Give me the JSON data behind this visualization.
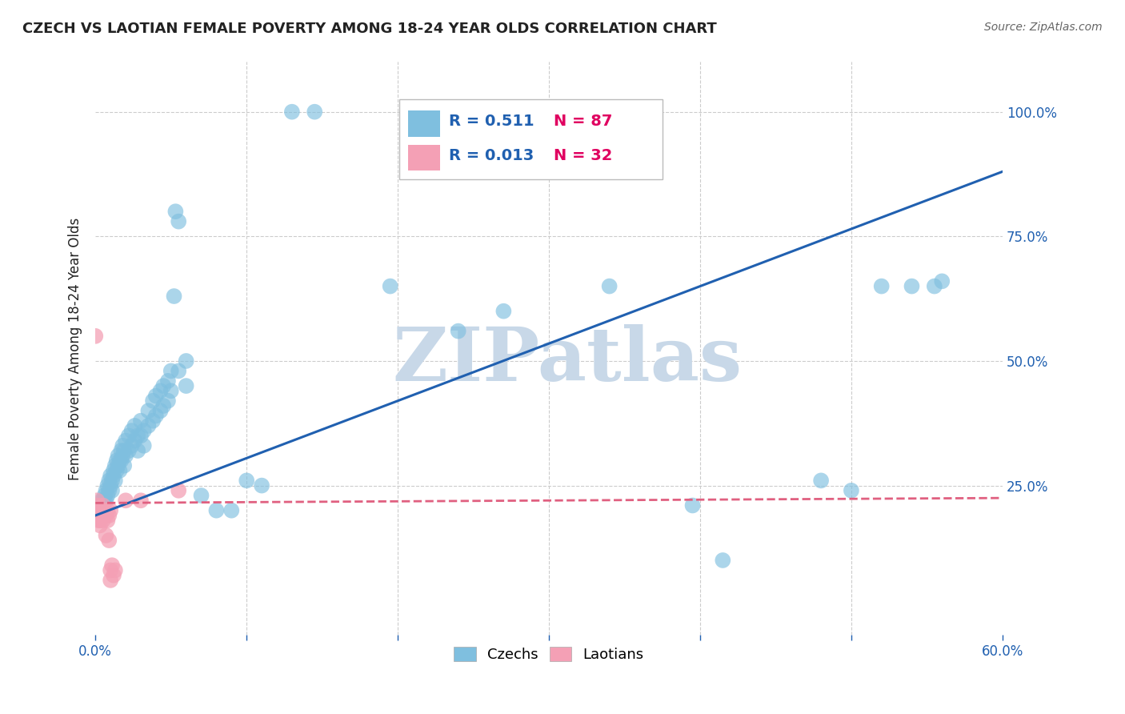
{
  "title": "CZECH VS LAOTIAN FEMALE POVERTY AMONG 18-24 YEAR OLDS CORRELATION CHART",
  "source": "Source: ZipAtlas.com",
  "ylabel_label": "Female Poverty Among 18-24 Year Olds",
  "xlim": [
    0.0,
    0.6
  ],
  "ylim": [
    -0.05,
    1.1
  ],
  "czech_R": 0.511,
  "czech_N": 87,
  "laotian_R": 0.013,
  "laotian_N": 32,
  "czech_color": "#7fbfdf",
  "laotian_color": "#f4a0b5",
  "czech_line_color": "#2060b0",
  "laotian_line_color": "#e06080",
  "watermark": "ZIPatlas",
  "watermark_color": "#c8d8e8",
  "background_color": "#ffffff",
  "grid_color": "#cccccc",
  "title_color": "#222222",
  "axis_label_color": "#222222",
  "tick_color": "#2060b0",
  "legend_R_color": "#2060b0",
  "legend_N_color": "#e00060",
  "czech_points": [
    [
      0.003,
      0.21
    ],
    [
      0.004,
      0.22
    ],
    [
      0.004,
      0.2
    ],
    [
      0.005,
      0.22
    ],
    [
      0.005,
      0.21
    ],
    [
      0.005,
      0.2
    ],
    [
      0.006,
      0.23
    ],
    [
      0.006,
      0.22
    ],
    [
      0.007,
      0.24
    ],
    [
      0.007,
      0.22
    ],
    [
      0.008,
      0.25
    ],
    [
      0.008,
      0.23
    ],
    [
      0.009,
      0.26
    ],
    [
      0.009,
      0.24
    ],
    [
      0.01,
      0.27
    ],
    [
      0.01,
      0.25
    ],
    [
      0.011,
      0.26
    ],
    [
      0.011,
      0.24
    ],
    [
      0.012,
      0.28
    ],
    [
      0.012,
      0.27
    ],
    [
      0.013,
      0.29
    ],
    [
      0.013,
      0.26
    ],
    [
      0.014,
      0.3
    ],
    [
      0.014,
      0.28
    ],
    [
      0.015,
      0.31
    ],
    [
      0.015,
      0.29
    ],
    [
      0.016,
      0.3
    ],
    [
      0.016,
      0.28
    ],
    [
      0.017,
      0.32
    ],
    [
      0.017,
      0.3
    ],
    [
      0.018,
      0.33
    ],
    [
      0.018,
      0.31
    ],
    [
      0.019,
      0.32
    ],
    [
      0.019,
      0.29
    ],
    [
      0.02,
      0.34
    ],
    [
      0.02,
      0.31
    ],
    [
      0.022,
      0.35
    ],
    [
      0.022,
      0.32
    ],
    [
      0.024,
      0.36
    ],
    [
      0.024,
      0.33
    ],
    [
      0.026,
      0.37
    ],
    [
      0.026,
      0.34
    ],
    [
      0.028,
      0.35
    ],
    [
      0.028,
      0.32
    ],
    [
      0.03,
      0.38
    ],
    [
      0.03,
      0.35
    ],
    [
      0.032,
      0.36
    ],
    [
      0.032,
      0.33
    ],
    [
      0.035,
      0.4
    ],
    [
      0.035,
      0.37
    ],
    [
      0.038,
      0.42
    ],
    [
      0.038,
      0.38
    ],
    [
      0.04,
      0.43
    ],
    [
      0.04,
      0.39
    ],
    [
      0.043,
      0.44
    ],
    [
      0.043,
      0.4
    ],
    [
      0.045,
      0.45
    ],
    [
      0.045,
      0.41
    ],
    [
      0.048,
      0.46
    ],
    [
      0.048,
      0.42
    ],
    [
      0.05,
      0.48
    ],
    [
      0.05,
      0.44
    ],
    [
      0.052,
      0.63
    ],
    [
      0.053,
      0.8
    ],
    [
      0.055,
      0.78
    ],
    [
      0.055,
      0.48
    ],
    [
      0.06,
      0.5
    ],
    [
      0.06,
      0.45
    ],
    [
      0.07,
      0.23
    ],
    [
      0.08,
      0.2
    ],
    [
      0.09,
      0.2
    ],
    [
      0.1,
      0.26
    ],
    [
      0.11,
      0.25
    ],
    [
      0.13,
      1.0
    ],
    [
      0.145,
      1.0
    ],
    [
      0.195,
      0.65
    ],
    [
      0.24,
      0.56
    ],
    [
      0.27,
      0.6
    ],
    [
      0.34,
      0.65
    ],
    [
      0.395,
      0.21
    ],
    [
      0.415,
      0.1
    ],
    [
      0.48,
      0.26
    ],
    [
      0.5,
      0.24
    ],
    [
      0.52,
      0.65
    ],
    [
      0.54,
      0.65
    ],
    [
      0.555,
      0.65
    ],
    [
      0.56,
      0.66
    ]
  ],
  "laotian_points": [
    [
      0.0,
      0.55
    ],
    [
      0.001,
      0.22
    ],
    [
      0.001,
      0.2
    ],
    [
      0.001,
      0.21
    ],
    [
      0.002,
      0.2
    ],
    [
      0.002,
      0.19
    ],
    [
      0.002,
      0.18
    ],
    [
      0.003,
      0.2
    ],
    [
      0.003,
      0.19
    ],
    [
      0.003,
      0.18
    ],
    [
      0.003,
      0.17
    ],
    [
      0.004,
      0.2
    ],
    [
      0.004,
      0.19
    ],
    [
      0.005,
      0.21
    ],
    [
      0.005,
      0.18
    ],
    [
      0.006,
      0.2
    ],
    [
      0.006,
      0.19
    ],
    [
      0.007,
      0.19
    ],
    [
      0.007,
      0.15
    ],
    [
      0.008,
      0.2
    ],
    [
      0.008,
      0.18
    ],
    [
      0.009,
      0.19
    ],
    [
      0.009,
      0.14
    ],
    [
      0.01,
      0.2
    ],
    [
      0.01,
      0.08
    ],
    [
      0.01,
      0.06
    ],
    [
      0.011,
      0.09
    ],
    [
      0.012,
      0.07
    ],
    [
      0.013,
      0.08
    ],
    [
      0.02,
      0.22
    ],
    [
      0.03,
      0.22
    ],
    [
      0.055,
      0.24
    ]
  ],
  "czech_line": [
    0.0,
    0.6,
    0.19,
    0.88
  ],
  "laotian_line": [
    0.0,
    0.6,
    0.215,
    0.225
  ]
}
